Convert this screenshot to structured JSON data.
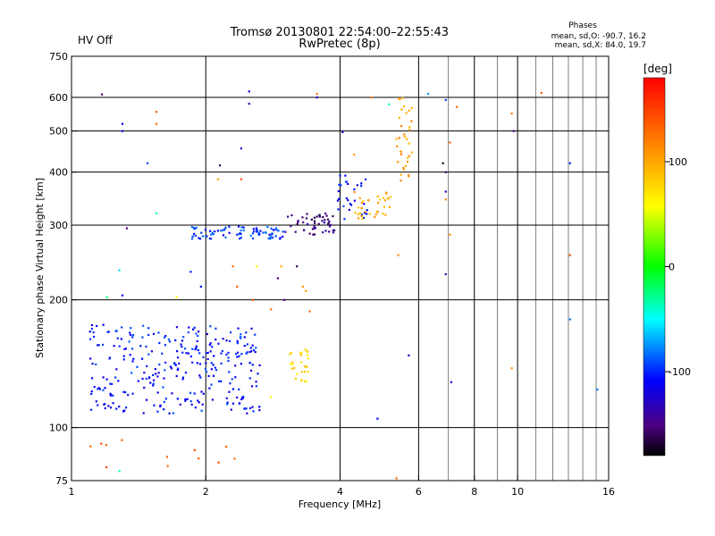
{
  "status_label": "HV Off",
  "status_color": "#dd0000",
  "chart_data": {
    "type": "scatter",
    "title": "Tromsø 20130801 22:54:00–22:55:43",
    "subtitle": "RwPretec (8p)",
    "stats": {
      "heading": "Phases",
      "line1": "mean, sd,O: -90.7, 16.2",
      "line2": "mean, sd,X: 84.0, 19.7"
    },
    "xlabel": "Frequency [MHz]",
    "ylabel": "Stationary phase Virtual Height [km]",
    "x_scale": "log",
    "y_scale": "log",
    "xlim": [
      1,
      16
    ],
    "ylim": [
      75,
      750
    ],
    "x_ticks": [
      1,
      2,
      4,
      6,
      8,
      10,
      16
    ],
    "x_tick_labels": [
      "1",
      "2",
      "4",
      "6",
      "8",
      "10",
      "16"
    ],
    "x_grid_major": [
      2,
      4,
      6,
      8,
      10
    ],
    "x_grid_minor": [
      7,
      9,
      11,
      12,
      13,
      14,
      15
    ],
    "y_ticks": [
      75,
      100,
      200,
      300,
      400,
      500,
      600,
      750
    ],
    "y_tick_labels": [
      "75",
      "100",
      "200",
      "300",
      "400",
      "500",
      "600",
      "750"
    ],
    "y_grid": [
      100,
      200,
      300,
      400,
      500,
      600
    ],
    "grid": true,
    "colorbar": {
      "label": "[deg]",
      "range": [
        -180,
        180
      ],
      "ticks": [
        100,
        0,
        -100
      ],
      "tick_labels": [
        "100",
        "0",
        "-100"
      ]
    },
    "clusters": [
      {
        "name": "",
        "freq_range": [
          1.1,
          2.65
        ],
        "height_range": [
          108,
          175
        ],
        "phase_deg": -105,
        "count": 300
      },
      {
        "name": "",
        "freq_range": [
          1.85,
          3.0
        ],
        "height_range": [
          278,
          298
        ],
        "phase_deg": -95,
        "count": 80
      },
      {
        "name": "",
        "freq_range": [
          3.0,
          3.9
        ],
        "height_range": [
          285,
          320
        ],
        "phase_deg": -150,
        "count": 50
      },
      {
        "name": "",
        "freq_range": [
          3.95,
          4.6
        ],
        "height_range": [
          310,
          400
        ],
        "phase_deg": -110,
        "count": 30
      },
      {
        "name": "",
        "freq_range": [
          4.3,
          5.2
        ],
        "height_range": [
          310,
          360
        ],
        "phase_deg": 100,
        "count": 35
      },
      {
        "name": "",
        "freq_range": [
          5.35,
          5.8
        ],
        "height_range": [
          380,
          610
        ],
        "phase_deg": 105,
        "count": 35
      },
      {
        "name": "",
        "freq_range": [
          3.05,
          3.4
        ],
        "height_range": [
          125,
          155
        ],
        "phase_deg": 75,
        "count": 28
      },
      {
        "name": "",
        "freq_range": [
          1.1,
          2.4
        ],
        "height_range": [
          80,
          100
        ],
        "phase_deg": 130,
        "count": 12
      }
    ],
    "scattered_points": [
      {
        "x": 1.17,
        "y": 610,
        "phase": -150
      },
      {
        "x": 1.3,
        "y": 520,
        "phase": -110
      },
      {
        "x": 1.3,
        "y": 500,
        "phase": -110
      },
      {
        "x": 1.55,
        "y": 555,
        "phase": 130
      },
      {
        "x": 1.55,
        "y": 520,
        "phase": 130
      },
      {
        "x": 1.48,
        "y": 420,
        "phase": -90
      },
      {
        "x": 1.33,
        "y": 295,
        "phase": -150
      },
      {
        "x": 1.28,
        "y": 235,
        "phase": -60
      },
      {
        "x": 1.3,
        "y": 205,
        "phase": -110
      },
      {
        "x": 1.2,
        "y": 203,
        "phase": -20
      },
      {
        "x": 1.55,
        "y": 320,
        "phase": -40
      },
      {
        "x": 1.72,
        "y": 203,
        "phase": 60
      },
      {
        "x": 1.85,
        "y": 233,
        "phase": -100
      },
      {
        "x": 1.95,
        "y": 215,
        "phase": -110
      },
      {
        "x": 2.15,
        "y": 415,
        "phase": -160
      },
      {
        "x": 2.13,
        "y": 385,
        "phase": 100
      },
      {
        "x": 2.4,
        "y": 385,
        "phase": 140
      },
      {
        "x": 2.4,
        "y": 455,
        "phase": -130
      },
      {
        "x": 2.5,
        "y": 620,
        "phase": -120
      },
      {
        "x": 2.5,
        "y": 580,
        "phase": -140
      },
      {
        "x": 2.3,
        "y": 240,
        "phase": 130
      },
      {
        "x": 2.35,
        "y": 215,
        "phase": 140
      },
      {
        "x": 2.6,
        "y": 240,
        "phase": 60
      },
      {
        "x": 2.55,
        "y": 200,
        "phase": 140
      },
      {
        "x": 2.8,
        "y": 190,
        "phase": 130
      },
      {
        "x": 2.95,
        "y": 240,
        "phase": 100
      },
      {
        "x": 2.9,
        "y": 225,
        "phase": -150
      },
      {
        "x": 3.2,
        "y": 240,
        "phase": -160
      },
      {
        "x": 3.0,
        "y": 200,
        "phase": -150
      },
      {
        "x": 3.3,
        "y": 215,
        "phase": 110
      },
      {
        "x": 3.35,
        "y": 210,
        "phase": 100
      },
      {
        "x": 3.55,
        "y": 612,
        "phase": 120
      },
      {
        "x": 3.55,
        "y": 600,
        "phase": -120
      },
      {
        "x": 3.42,
        "y": 188,
        "phase": 130
      },
      {
        "x": 4.05,
        "y": 497,
        "phase": -120
      },
      {
        "x": 4.3,
        "y": 440,
        "phase": 110
      },
      {
        "x": 4.7,
        "y": 600,
        "phase": 120
      },
      {
        "x": 5.15,
        "y": 578,
        "phase": -40
      },
      {
        "x": 5.4,
        "y": 255,
        "phase": 110
      },
      {
        "x": 6.3,
        "y": 612,
        "phase": -70
      },
      {
        "x": 6.9,
        "y": 592,
        "phase": -90
      },
      {
        "x": 6.8,
        "y": 420,
        "phase": -170
      },
      {
        "x": 6.9,
        "y": 400,
        "phase": -160
      },
      {
        "x": 6.9,
        "y": 360,
        "phase": -130
      },
      {
        "x": 6.9,
        "y": 345,
        "phase": 120
      },
      {
        "x": 6.9,
        "y": 230,
        "phase": -130
      },
      {
        "x": 7.05,
        "y": 470,
        "phase": 130
      },
      {
        "x": 7.05,
        "y": 285,
        "phase": 110
      },
      {
        "x": 7.1,
        "y": 128,
        "phase": -120
      },
      {
        "x": 7.3,
        "y": 570,
        "phase": 130
      },
      {
        "x": 9.7,
        "y": 550,
        "phase": 120
      },
      {
        "x": 9.8,
        "y": 500,
        "phase": -150
      },
      {
        "x": 9.7,
        "y": 138,
        "phase": 110
      },
      {
        "x": 11.3,
        "y": 615,
        "phase": 140
      },
      {
        "x": 13.1,
        "y": 420,
        "phase": -100
      },
      {
        "x": 13.1,
        "y": 255,
        "phase": 140
      },
      {
        "x": 13.1,
        "y": 180,
        "phase": -80
      },
      {
        "x": 15.1,
        "y": 123,
        "phase": -80
      },
      {
        "x": 5.7,
        "y": 148,
        "phase": -130
      },
      {
        "x": 4.85,
        "y": 105,
        "phase": -110
      },
      {
        "x": 5.35,
        "y": 76,
        "phase": 130
      },
      {
        "x": 1.28,
        "y": 79,
        "phase": -40
      },
      {
        "x": 1.2,
        "y": 130,
        "phase": -110
      },
      {
        "x": 2.8,
        "y": 118,
        "phase": 60
      }
    ]
  }
}
